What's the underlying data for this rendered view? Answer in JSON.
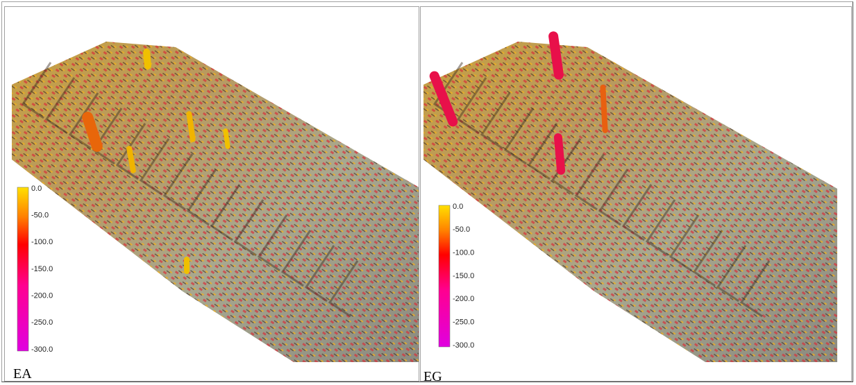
{
  "cells": [
    {
      "caption": "EA",
      "legend": [
        "0.0",
        "-50.0",
        "-100.0",
        "-150.0",
        "-200.0",
        "-250.0",
        "-300.0"
      ]
    },
    {
      "caption": "EG",
      "legend": [
        "0.0",
        "-50.0",
        "-100.0",
        "-150.0",
        "-200.0",
        "-250.0",
        "-300.0"
      ]
    }
  ]
}
